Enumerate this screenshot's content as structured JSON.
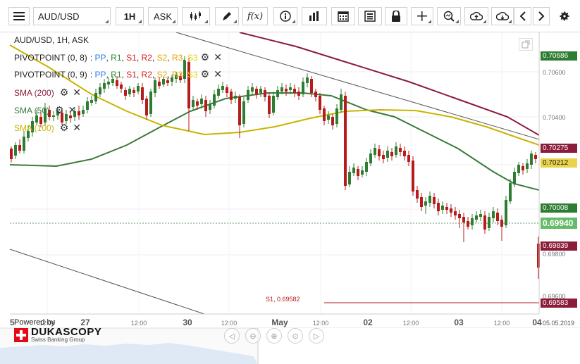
{
  "toolbar": {
    "menu_icon": "hamburger-icon",
    "symbol": "AUD/USD",
    "timeframe": "1H",
    "price_type": "ASK",
    "chart_type_icon": "candles-icon",
    "draw_icon": "pencil-icon",
    "indicator_label": "f(x)",
    "info_icon": "info-icon",
    "volume_icon": "bar-chart-icon",
    "calendar_icon": "calendar-icon",
    "news_icon": "newspaper-icon",
    "lock_icon": "lock-icon",
    "crosshair_icon": "crosshair-icon",
    "zoom_icon": "zoom-icon",
    "upload_icon": "cloud-upload-icon",
    "download_icon": "cloud-download-icon",
    "prev_icon": "chevron-left-icon",
    "next_icon": "chevron-right-icon",
    "settings_icon": "gear-icon"
  },
  "chart_header": "AUD/USD, 1H, ASK",
  "legend": [
    {
      "name": "PIVOTPOINT (0, 8)",
      "color": "#222222",
      "parts": [
        {
          "t": ": ",
          "c": "#222222"
        },
        {
          "t": "PP",
          "c": "#2a7de1"
        },
        {
          "t": ", ",
          "c": "#222222"
        },
        {
          "t": "R1",
          "c": "#2e8b2e"
        },
        {
          "t": ", ",
          "c": "#222222"
        },
        {
          "t": "S1",
          "c": "#d81b1b"
        },
        {
          "t": ", ",
          "c": "#222222"
        },
        {
          "t": "R2",
          "c": "#d81b1b"
        },
        {
          "t": ", ",
          "c": "#222222"
        },
        {
          "t": "S2",
          "c": "#e8a200"
        },
        {
          "t": ", ",
          "c": "#222222"
        },
        {
          "t": "R3",
          "c": "#e8a200"
        },
        {
          "t": ", ",
          "c": "#222222"
        },
        {
          "t": "S3",
          "c": "#e8d000"
        }
      ]
    },
    {
      "name": "PIVOTPOINT (0, 9)",
      "color": "#222222",
      "parts": [
        {
          "t": ": ",
          "c": "#222222"
        },
        {
          "t": "PP",
          "c": "#2a7de1"
        },
        {
          "t": ", ",
          "c": "#222222"
        },
        {
          "t": "R1",
          "c": "#2e8b2e"
        },
        {
          "t": ", ",
          "c": "#222222"
        },
        {
          "t": "S1",
          "c": "#d81b1b"
        },
        {
          "t": ", ",
          "c": "#222222"
        },
        {
          "t": "R2",
          "c": "#d81b1b"
        },
        {
          "t": ", ",
          "c": "#222222"
        },
        {
          "t": "S2",
          "c": "#e8a200"
        },
        {
          "t": ", ",
          "c": "#222222"
        },
        {
          "t": "R3",
          "c": "#e8a200"
        },
        {
          "t": ", ",
          "c": "#222222"
        },
        {
          "t": "S3",
          "c": "#e8d000"
        }
      ]
    },
    {
      "name": "SMA (200)",
      "color": "#8b1c3a",
      "parts": []
    },
    {
      "name": "SMA (50)",
      "color": "#3a7a3a",
      "parts": []
    },
    {
      "name": "SMA (100)",
      "color": "#c8b400",
      "parts": []
    }
  ],
  "price_axis": {
    "ticks": [
      "0.70680",
      "0.70600",
      "0.70400",
      "0.69800",
      "0.69600"
    ],
    "tags": [
      {
        "label": "0.70686",
        "color": "#2e7d32"
      },
      {
        "label": "0.70275",
        "color": "#8b1c3a"
      },
      {
        "label": "0.70212",
        "color": "#e8d34a"
      },
      {
        "label": "0.70008",
        "color": "#2e7d32"
      },
      {
        "label": "0.69940",
        "color": "#66bb6a"
      },
      {
        "label": "0.69839",
        "color": "#8b1c3a"
      },
      {
        "label": "0.69583",
        "color": "#8b1c3a"
      }
    ]
  },
  "time_axis": [
    "5",
    "12:00",
    "27",
    "12:00",
    "30",
    "12:00",
    "May",
    "12:00",
    "02",
    "12:00",
    "03",
    "12:00",
    "04",
    "05.05.2019"
  ],
  "s1_label": "S1, 0.69582",
  "powered_by": "Powered by",
  "brand": "DUKASCOPY",
  "brand_sub": "Swiss Banking Group",
  "colors": {
    "sma200": "#8b1c3a",
    "sma50": "#3a7a3a",
    "sma100": "#c8b400",
    "bull": "#2e7d32",
    "bear": "#b71c1c",
    "trend": "#555555"
  }
}
